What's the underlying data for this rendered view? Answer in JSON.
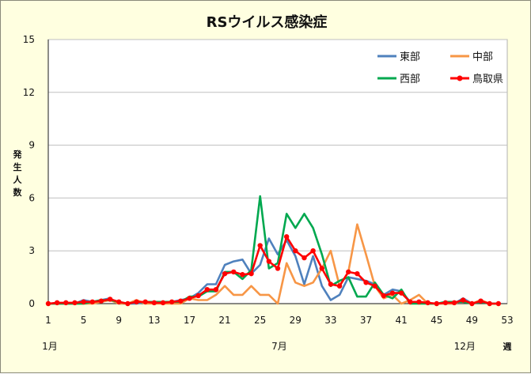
{
  "chart_data": {
    "type": "line",
    "title": "RSウイルス感染症",
    "ylabel": "発生人数",
    "xlabel": "週",
    "ylim": [
      0,
      15
    ],
    "xlim": [
      1,
      53
    ],
    "yticks": [
      "0",
      "3",
      "6",
      "9",
      "12",
      "15"
    ],
    "xticks": [
      "1",
      "5",
      "9",
      "13",
      "17",
      "21",
      "25",
      "29",
      "33",
      "37",
      "41",
      "45",
      "49",
      "53"
    ],
    "month_labels": [
      {
        "label": "1月",
        "week": 1
      },
      {
        "label": "7月",
        "week": 27
      },
      {
        "label": "12月",
        "week": 48
      }
    ],
    "grid": "horizontal",
    "legend": "top-right",
    "x": [
      1,
      2,
      3,
      4,
      5,
      6,
      7,
      8,
      9,
      10,
      11,
      12,
      13,
      14,
      15,
      16,
      17,
      18,
      19,
      20,
      21,
      22,
      23,
      24,
      25,
      26,
      27,
      28,
      29,
      30,
      31,
      32,
      33,
      34,
      35,
      36,
      37,
      38,
      39,
      40,
      41,
      42,
      43,
      44,
      45,
      46,
      47,
      48,
      49,
      50,
      51,
      52
    ],
    "series": [
      {
        "name": "東部",
        "color": "#4f81bd",
        "markers": false,
        "values": [
          0,
          0,
          0,
          0,
          0.2,
          0.1,
          0.2,
          0.3,
          0,
          0,
          0,
          0.1,
          0.1,
          0.1,
          0.1,
          0.2,
          0.3,
          0.6,
          1.1,
          1.1,
          2.2,
          2.4,
          2.5,
          1.7,
          2.2,
          3.7,
          2.8,
          3.6,
          2.7,
          1.1,
          2.7,
          1.0,
          0.2,
          0.5,
          1.5,
          1.4,
          1.3,
          1.1,
          0.5,
          0.8,
          0.7,
          0.1,
          0.1,
          0,
          0,
          0,
          0,
          0.3,
          0,
          0.1,
          0,
          0
        ]
      },
      {
        "name": "中部",
        "color": "#f79646",
        "markers": false,
        "values": [
          0,
          0,
          0,
          0,
          0,
          0,
          0.1,
          0.2,
          0,
          0,
          0.2,
          0,
          0,
          0,
          0,
          0,
          0.3,
          0.2,
          0.2,
          0.5,
          1.0,
          0.5,
          0.5,
          1.0,
          0.5,
          0.5,
          0,
          2.3,
          1.2,
          1.0,
          1.2,
          2.0,
          3.0,
          1.0,
          1.8,
          4.5,
          2.8,
          1.0,
          0.3,
          0.5,
          0,
          0.2,
          0.5,
          0,
          0,
          0,
          0,
          0.2,
          0,
          0.2,
          0,
          0
        ]
      },
      {
        "name": "西部",
        "color": "#00a84f",
        "markers": false,
        "values": [
          0,
          0,
          0,
          0,
          0,
          0.1,
          0.2,
          0.2,
          0.1,
          0,
          0.1,
          0.1,
          0.1,
          0.1,
          0.1,
          0.1,
          0.4,
          0.4,
          0.7,
          0.7,
          1.8,
          1.8,
          1.4,
          1.9,
          6.1,
          2.0,
          2.3,
          5.1,
          4.3,
          5.1,
          4.3,
          2.8,
          1.0,
          1.3,
          1.5,
          0.4,
          0.4,
          1.2,
          0.5,
          0.3,
          0.8,
          0,
          0,
          0,
          0,
          0.1,
          0.1,
          0.1,
          0,
          0.1,
          0,
          0
        ]
      },
      {
        "name": "鳥取県",
        "color": "#ff0000",
        "markers": true,
        "values": [
          0,
          0.05,
          0.05,
          0.05,
          0.1,
          0.1,
          0.15,
          0.25,
          0.1,
          0,
          0.1,
          0.1,
          0.05,
          0.05,
          0.1,
          0.15,
          0.3,
          0.45,
          0.8,
          0.8,
          1.7,
          1.8,
          1.65,
          1.7,
          3.3,
          2.4,
          2.0,
          3.8,
          3.0,
          2.6,
          3.0,
          2.0,
          1.1,
          1.0,
          1.8,
          1.7,
          1.2,
          1.0,
          0.45,
          0.6,
          0.6,
          0.1,
          0.1,
          0.05,
          0,
          0.05,
          0.05,
          0.2,
          0,
          0.15,
          0,
          0
        ]
      }
    ]
  }
}
